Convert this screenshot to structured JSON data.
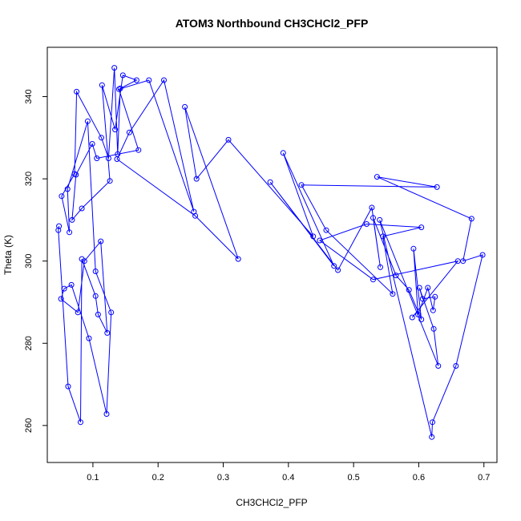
{
  "chart_data": {
    "type": "line",
    "title": "ATOM3 Northbound CH3CHCl2_PFP",
    "xlabel": "CH3CHCl2_PFP",
    "ylabel": "Theta (K)",
    "xlim": [
      0.03,
      0.72
    ],
    "ylim": [
      251,
      352
    ],
    "xticks": [
      0.1,
      0.2,
      0.3,
      0.4,
      0.5,
      0.6,
      0.7
    ],
    "xtick_labels": [
      "0.1",
      "0.2",
      "0.3",
      "0.4",
      "0.5",
      "0.6",
      "0.7"
    ],
    "yticks": [
      260,
      280,
      300,
      320,
      340
    ],
    "ytick_labels": [
      "260",
      "280",
      "300",
      "320",
      "340"
    ],
    "grid": false,
    "color": "#0000ff",
    "marker": "open-circle",
    "series": [
      {
        "points": [
          [
            0.048,
            308.5
          ],
          [
            0.047,
            307.5
          ],
          [
            0.062,
            269.5
          ],
          [
            0.081,
            260.8
          ],
          [
            0.083,
            300.5
          ],
          [
            0.104,
            291.5
          ],
          [
            0.108,
            287.0
          ],
          [
            0.122,
            282.5
          ],
          [
            0.112,
            304.8
          ],
          [
            0.087,
            300.0
          ],
          [
            0.077,
            287.5
          ],
          [
            0.051,
            290.8
          ],
          [
            0.056,
            293.3
          ],
          [
            0.067,
            294.2
          ],
          [
            0.094,
            281.2
          ],
          [
            0.121,
            262.8
          ],
          [
            0.128,
            287.5
          ],
          [
            0.104,
            297.5
          ],
          [
            0.092,
            334.0
          ],
          [
            0.061,
            317.5
          ],
          [
            0.064,
            307.0
          ],
          [
            0.052,
            315.8
          ],
          [
            0.072,
            321.2
          ],
          [
            0.075,
            341.2
          ],
          [
            0.113,
            330.0
          ],
          [
            0.124,
            325.0
          ],
          [
            0.133,
            347.0
          ],
          [
            0.138,
            326.0
          ],
          [
            0.142,
            342.0
          ],
          [
            0.167,
            344.0
          ],
          [
            0.146,
            345.2
          ],
          [
            0.134,
            332.0
          ],
          [
            0.114,
            342.8
          ],
          [
            0.126,
            319.5
          ],
          [
            0.083,
            312.8
          ],
          [
            0.068,
            310.0
          ],
          [
            0.074,
            321.0
          ],
          [
            0.099,
            328.5
          ],
          [
            0.106,
            325.0
          ],
          [
            0.17,
            327.0
          ],
          [
            0.14,
            341.8
          ],
          [
            0.186,
            344.0
          ],
          [
            0.255,
            312.0
          ],
          [
            0.209,
            344.0
          ],
          [
            0.156,
            331.3
          ],
          [
            0.137,
            324.8
          ],
          [
            0.257,
            311.0
          ],
          [
            0.323,
            300.5
          ],
          [
            0.241,
            337.5
          ],
          [
            0.259,
            320.0
          ],
          [
            0.308,
            329.5
          ],
          [
            0.438,
            306.0
          ],
          [
            0.392,
            326.3
          ],
          [
            0.47,
            298.8
          ],
          [
            0.372,
            319.2
          ],
          [
            0.476,
            297.8
          ],
          [
            0.528,
            313.0
          ],
          [
            0.541,
            298.5
          ],
          [
            0.53,
            310.5
          ],
          [
            0.565,
            296.5
          ],
          [
            0.585,
            293.0
          ],
          [
            0.604,
            285.8
          ],
          [
            0.592,
            303.0
          ],
          [
            0.599,
            287.0
          ],
          [
            0.614,
            293.5
          ],
          [
            0.622,
            288.0
          ],
          [
            0.625,
            291.3
          ],
          [
            0.606,
            290.8
          ],
          [
            0.601,
            293.5
          ],
          [
            0.623,
            283.5
          ],
          [
            0.63,
            274.5
          ],
          [
            0.54,
            310.0
          ],
          [
            0.62,
            257.2
          ],
          [
            0.621,
            260.8
          ],
          [
            0.657,
            274.5
          ],
          [
            0.698,
            301.5
          ],
          [
            0.668,
            300.0
          ],
          [
            0.681,
            310.3
          ],
          [
            0.536,
            320.5
          ],
          [
            0.628,
            318.0
          ],
          [
            0.42,
            318.5
          ],
          [
            0.458,
            307.5
          ],
          [
            0.56,
            292.0
          ],
          [
            0.545,
            306.0
          ],
          [
            0.604,
            308.2
          ],
          [
            0.52,
            309.0
          ],
          [
            0.448,
            305.0
          ],
          [
            0.53,
            295.5
          ],
          [
            0.66,
            300.0
          ],
          [
            0.59,
            286.3
          ]
        ]
      }
    ]
  }
}
